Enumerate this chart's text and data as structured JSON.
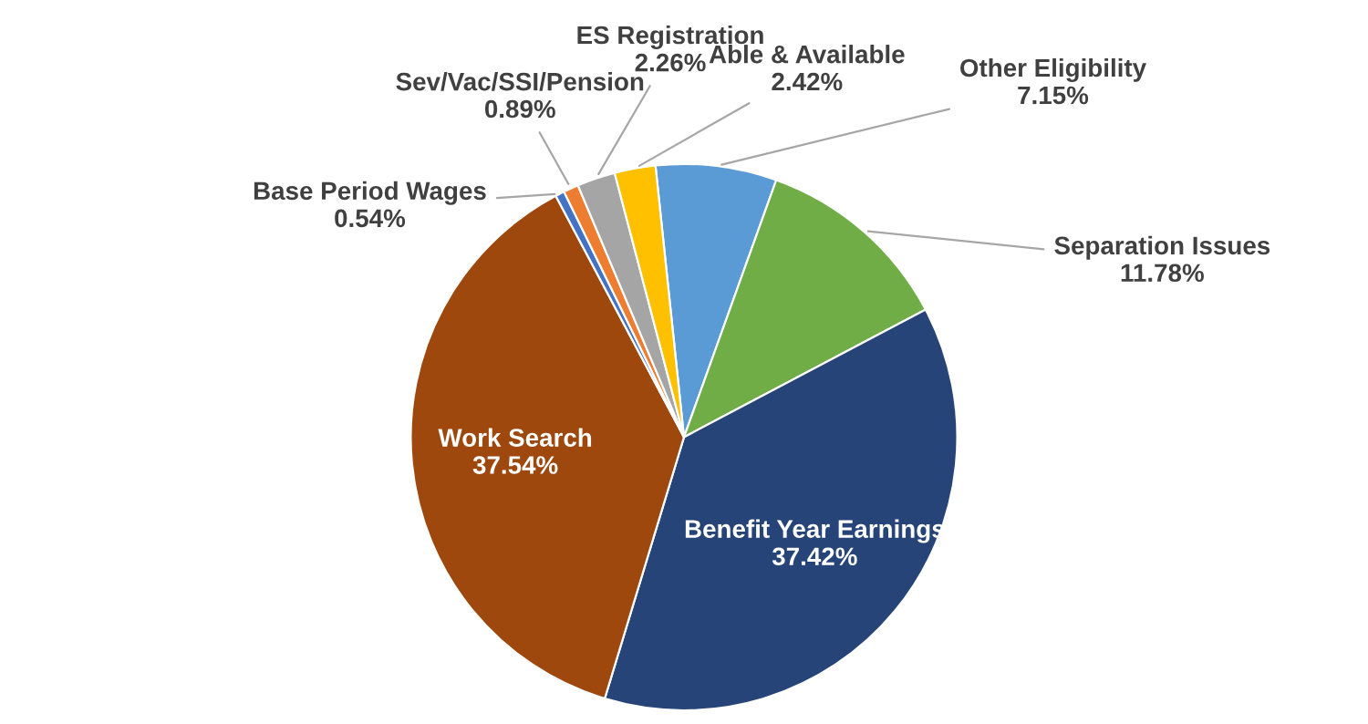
{
  "chart_data": {
    "type": "pie",
    "categories": [
      "Other Eligibility",
      "Separation Issues",
      "Benefit Year Earnings",
      "Work Search",
      "Base Period Wages",
      "Sev/Vac/SSI/Pension",
      "ES Registration",
      "Able & Available"
    ],
    "values": [
      7.15,
      11.78,
      37.42,
      37.54,
      0.54,
      0.89,
      2.26,
      2.42
    ],
    "value_labels": [
      "7.15%",
      "11.78%",
      "37.42%",
      "37.54%",
      "0.54%",
      "0.89%",
      "2.26%",
      "2.42%"
    ],
    "colors": [
      "#5b9bd5",
      "#70ad47",
      "#264478",
      "#9e480e",
      "#4472c4",
      "#ed7d31",
      "#a5a5a5",
      "#ffc000"
    ],
    "legend": false
  }
}
